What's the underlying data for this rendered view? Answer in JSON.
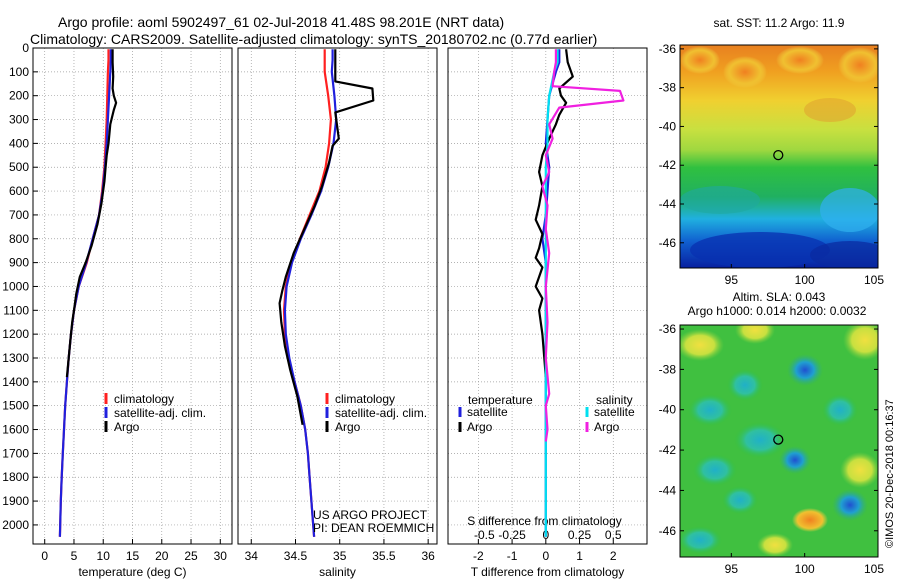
{
  "header": {
    "line1": "Argo profile: aoml 5902497_61 02-Jul-2018 41.48S 98.201E (NRT data)",
    "line2": "Climatology: CARS2009. Satellite-adjusted climatology: synTS_20180702.nc (0.77d earlier)"
  },
  "colors": {
    "climatology": "#ff2020",
    "satellite": "#2020dd",
    "argo": "#000000",
    "sal_satellite": "#00e0f0",
    "sal_argo": "#f020e0",
    "grid": "#9a9a9a"
  },
  "chart_data": [
    {
      "type": "line",
      "id": "temperature",
      "xlabel": "temperature (deg C)",
      "ylabel": "",
      "xlim": [
        -2,
        32
      ],
      "ylim": [
        2080,
        0
      ],
      "xticks": [
        0,
        5,
        10,
        15,
        20,
        25,
        30
      ],
      "yticks": [
        0,
        100,
        200,
        300,
        400,
        500,
        600,
        700,
        800,
        900,
        1000,
        1100,
        1200,
        1300,
        1400,
        1500,
        1600,
        1700,
        1800,
        1900,
        2000
      ],
      "legend": {
        "position": "lower-right",
        "entries": [
          "climatology",
          "satellite-adj. clim.",
          "Argo"
        ]
      },
      "series": [
        {
          "name": "climatology",
          "color_key": "climatology",
          "x": [
            10.9,
            10.9,
            10.8,
            10.7,
            10.6,
            10.4,
            10.2,
            9.8,
            9.3,
            8.2,
            7.2,
            5.8,
            5.0,
            4.5,
            4.1,
            3.8,
            3.5,
            3.3,
            3.1,
            2.9,
            2.75,
            2.6
          ],
          "y": [
            5,
            50,
            100,
            200,
            300,
            400,
            500,
            600,
            700,
            800,
            900,
            1000,
            1100,
            1200,
            1300,
            1400,
            1500,
            1600,
            1700,
            1800,
            1900,
            2050
          ]
        },
        {
          "name": "satellite-adj. clim.",
          "color_key": "satellite",
          "x": [
            11.3,
            11.3,
            11.2,
            11.0,
            10.8,
            10.6,
            10.3,
            9.9,
            9.3,
            8.2,
            7.1,
            5.8,
            5.0,
            4.5,
            4.1,
            3.8,
            3.5,
            3.3,
            3.1,
            2.9,
            2.75,
            2.6
          ],
          "y": [
            5,
            50,
            100,
            200,
            300,
            400,
            500,
            600,
            700,
            800,
            900,
            1000,
            1100,
            1200,
            1300,
            1400,
            1500,
            1600,
            1700,
            1800,
            1900,
            2050
          ]
        },
        {
          "name": "Argo",
          "color_key": "argo",
          "x": [
            11.6,
            11.6,
            11.7,
            11.6,
            11.8,
            12.2,
            11.8,
            11.2,
            10.9,
            10.6,
            10.4,
            10.2,
            9.7,
            9.0,
            8.0,
            7.0,
            6.0,
            5.4,
            5.0,
            4.7,
            4.4,
            4.1,
            3.8
          ],
          "y": [
            5,
            60,
            120,
            170,
            200,
            230,
            260,
            320,
            400,
            450,
            500,
            560,
            650,
            740,
            830,
            900,
            960,
            1030,
            1100,
            1150,
            1220,
            1300,
            1380
          ]
        }
      ]
    },
    {
      "type": "line",
      "id": "salinity",
      "xlabel": "salinity",
      "ylabel": "",
      "xlim": [
        33.85,
        36.1
      ],
      "ylim": [
        2080,
        0
      ],
      "xticks": [
        34,
        34.5,
        35,
        35.5,
        36
      ],
      "yticks": [
        0,
        100,
        200,
        300,
        400,
        500,
        600,
        700,
        800,
        900,
        1000,
        1100,
        1200,
        1300,
        1400,
        1500,
        1600,
        1700,
        1800,
        1900,
        2000
      ],
      "legend": {
        "position": "lower-left",
        "entries": [
          "climatology",
          "satellite-adj. clim.",
          "Argo"
        ]
      },
      "series": [
        {
          "name": "climatology",
          "color_key": "climatology",
          "x": [
            34.83,
            34.83,
            34.83,
            34.87,
            34.9,
            34.88,
            34.84,
            34.77,
            34.66,
            34.55,
            34.45,
            34.39,
            34.37,
            34.38,
            34.42,
            34.49,
            34.56,
            34.61,
            34.64,
            34.66,
            34.68,
            34.71
          ],
          "y": [
            5,
            50,
            100,
            200,
            300,
            400,
            500,
            600,
            700,
            800,
            900,
            1000,
            1100,
            1200,
            1300,
            1400,
            1500,
            1600,
            1700,
            1800,
            1900,
            2050
          ]
        },
        {
          "name": "satellite-adj. clim.",
          "color_key": "satellite",
          "x": [
            34.92,
            34.92,
            34.91,
            34.94,
            34.96,
            34.93,
            34.87,
            34.79,
            34.68,
            34.56,
            34.46,
            34.4,
            34.38,
            34.39,
            34.43,
            34.49,
            34.56,
            34.61,
            34.64,
            34.66,
            34.68,
            34.71
          ],
          "y": [
            5,
            50,
            100,
            200,
            300,
            400,
            500,
            600,
            700,
            800,
            900,
            1000,
            1100,
            1200,
            1300,
            1400,
            1500,
            1600,
            1700,
            1800,
            1900,
            2050
          ]
        },
        {
          "name": "Argo",
          "color_key": "argo",
          "x": [
            34.95,
            34.95,
            34.95,
            35.37,
            35.38,
            34.95,
            34.99,
            34.92,
            34.88,
            34.8,
            34.72,
            34.6,
            34.48,
            34.39,
            34.35,
            34.32,
            34.34,
            34.38,
            34.44,
            34.52,
            34.58
          ],
          "y": [
            5,
            70,
            140,
            170,
            220,
            270,
            380,
            410,
            480,
            580,
            660,
            760,
            860,
            960,
            1020,
            1070,
            1150,
            1250,
            1350,
            1460,
            1580
          ]
        }
      ]
    },
    {
      "type": "line",
      "id": "differences",
      "xlabel": "T difference from climatology",
      "xlabel_top": "S difference from climatology",
      "xlim": [
        -2.9,
        3.0
      ],
      "ylim": [
        2080,
        0
      ],
      "xticks": [
        -2,
        -1,
        0,
        1,
        2
      ],
      "xticks_top": [
        "-0.5",
        "-0.25",
        "0",
        "0.25",
        "0.5"
      ],
      "xticks_top_pos": [
        -2,
        -1,
        0,
        1,
        2
      ],
      "legend": {
        "position": "lower-center",
        "headers": [
          "temperature",
          "salinity"
        ],
        "entries": [
          "satellite",
          "Argo",
          "satellite",
          "Argo"
        ]
      },
      "series": [
        {
          "name": "temperature satellite",
          "color_key": "satellite",
          "x": [
            0.4,
            0.4,
            0.3,
            0.1,
            0.05,
            0.0,
            0.1,
            0.05,
            0.0,
            -0.1,
            0.0,
            0.0,
            0.0,
            0.0,
            0.0,
            0.0,
            0.0,
            0.0,
            0.0
          ],
          "y": [
            5,
            60,
            100,
            200,
            300,
            400,
            500,
            600,
            700,
            800,
            900,
            1000,
            1100,
            1200,
            1400,
            1600,
            1800,
            1900,
            2050
          ]
        },
        {
          "name": "temperature Argo",
          "color_key": "argo",
          "x": [
            0.6,
            0.65,
            0.8,
            0.4,
            0.45,
            0.6,
            0.4,
            0.3,
            0.1,
            -0.1,
            -0.2,
            -0.1,
            -0.2,
            -0.3,
            -0.1,
            -0.2,
            -0.3,
            -0.1,
            -0.2,
            -0.3,
            -0.1,
            -0.2,
            -0.1,
            0.0
          ],
          "y": [
            5,
            60,
            120,
            170,
            200,
            230,
            280,
            320,
            380,
            450,
            520,
            580,
            660,
            720,
            780,
            840,
            880,
            920,
            960,
            1000,
            1050,
            1100,
            1200,
            1380
          ]
        },
        {
          "name": "salinity satellite",
          "color_key": "sal_satellite",
          "x": [
            0.35,
            0.35,
            0.25,
            0.1,
            0.05,
            0.05,
            0.0,
            0.0,
            0.0,
            0.0,
            0.0,
            0.0,
            0.0,
            0.0,
            0.0,
            0.0,
            0.0,
            0.0
          ],
          "y": [
            5,
            60,
            100,
            200,
            300,
            400,
            500,
            600,
            700,
            800,
            900,
            1000,
            1200,
            1400,
            1600,
            1800,
            1900,
            2050
          ]
        },
        {
          "name": "salinity Argo",
          "color_key": "sal_argo",
          "x": [
            0.3,
            0.3,
            0.25,
            0.2,
            2.2,
            2.3,
            0.4,
            0.1,
            0.2,
            0.0,
            0.1,
            -0.1,
            0.05,
            0.0,
            0.1,
            0.0,
            0.05,
            0.0,
            0.1,
            0.0,
            0.05,
            0.0
          ],
          "y": [
            5,
            60,
            100,
            160,
            180,
            220,
            250,
            320,
            380,
            450,
            520,
            580,
            660,
            760,
            860,
            1000,
            1150,
            1300,
            1450,
            1500,
            1600,
            1650
          ]
        }
      ]
    },
    {
      "type": "heatmap",
      "id": "sst-map",
      "title": "sat. SST: 11.2  Argo: 11.9",
      "xlim": [
        91.5,
        105
      ],
      "ylim": [
        -47.3,
        -35.8
      ],
      "xticks": [
        95,
        100,
        105
      ],
      "yticks": [
        -36,
        -38,
        -40,
        -42,
        -44,
        -46
      ],
      "marker": {
        "lon": 98.201,
        "lat": -41.48
      }
    },
    {
      "type": "heatmap",
      "id": "sla-map",
      "title": "Altim. SLA: 0.043",
      "subtitle": "Argo h1000: 0.014 h2000: 0.0032",
      "xlim": [
        91.5,
        105
      ],
      "ylim": [
        -47.3,
        -35.8
      ],
      "xticks": [
        95,
        100,
        105
      ],
      "yticks": [
        -36,
        -38,
        -40,
        -42,
        -44,
        -46
      ],
      "marker": {
        "lon": 98.201,
        "lat": -41.48
      }
    }
  ],
  "credits": {
    "project": "US ARGO PROJECT",
    "pi": "PI: DEAN ROEMMICH",
    "imos": "©IMOS 20-Dec-2018 00:16:37"
  }
}
